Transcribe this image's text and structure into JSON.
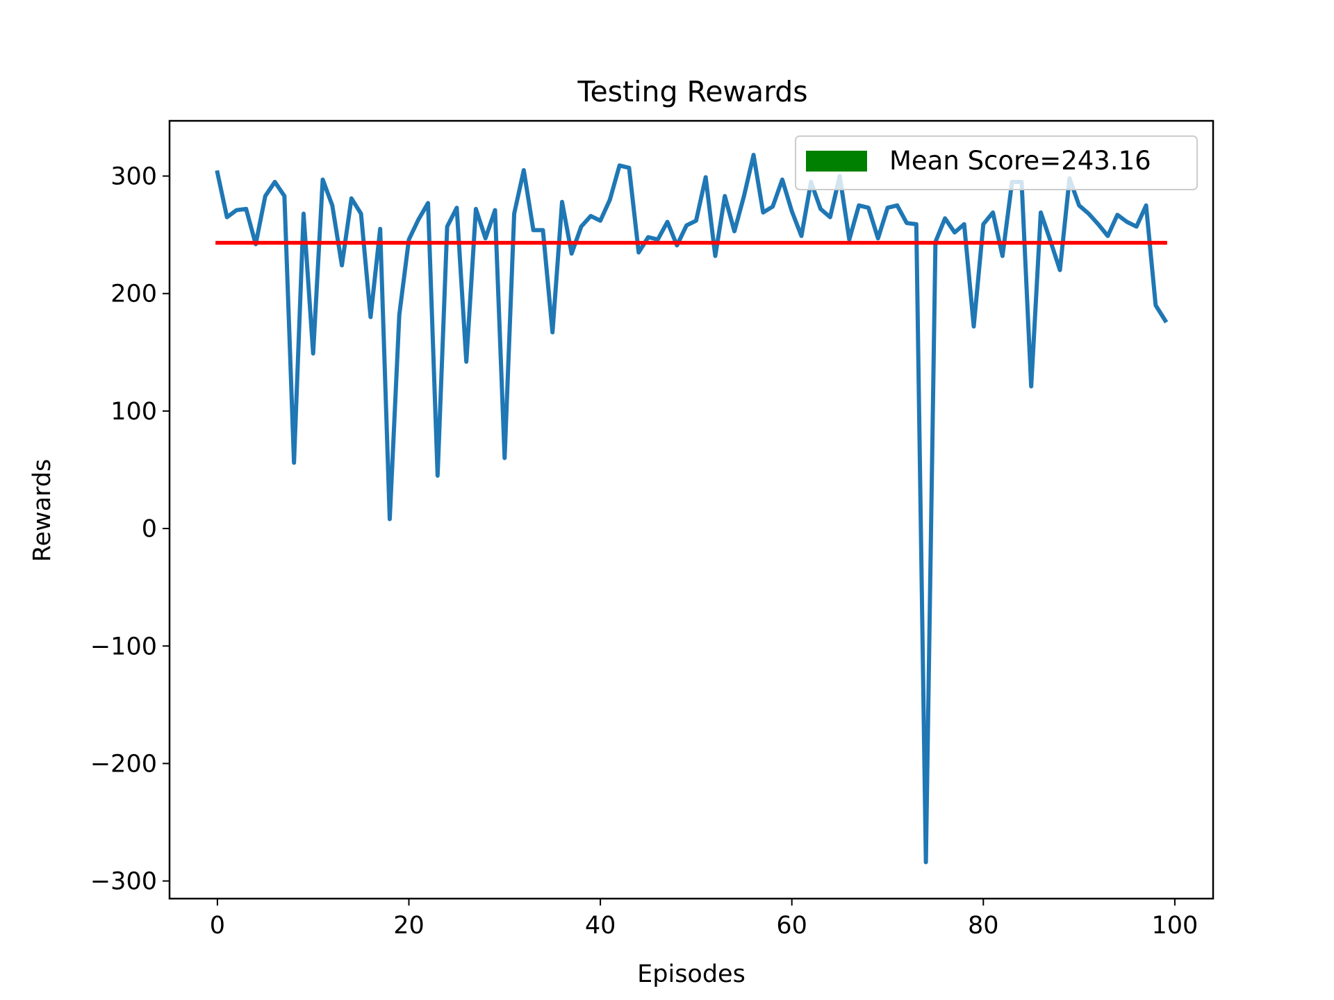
{
  "chart_data": {
    "type": "line",
    "title": "Testing Rewards",
    "xlabel": "Episodes",
    "ylabel": "Rewards",
    "xlim": [
      -5,
      104
    ],
    "ylim": [
      -315,
      347
    ],
    "xticks": [
      0,
      20,
      40,
      60,
      80,
      100
    ],
    "xtick_labels": [
      "0",
      "20",
      "40",
      "60",
      "80",
      "100"
    ],
    "yticks": [
      -300,
      -200,
      -100,
      0,
      100,
      200,
      300
    ],
    "ytick_labels": [
      "−300",
      "−200",
      "−100",
      "0",
      "100",
      "200",
      "300"
    ],
    "grid": false,
    "legend": {
      "position": "top-right",
      "entries": [
        {
          "label": "Mean Score=243.16",
          "color": "#008000",
          "marker": "patch"
        }
      ]
    },
    "series": [
      {
        "color": "#1f77b4",
        "x": [
          0,
          1,
          2,
          3,
          4,
          5,
          6,
          7,
          8,
          9,
          10,
          11,
          12,
          13,
          14,
          15,
          16,
          17,
          18,
          19,
          20,
          21,
          22,
          23,
          24,
          25,
          26,
          27,
          28,
          29,
          30,
          31,
          32,
          33,
          34,
          35,
          36,
          37,
          38,
          39,
          40,
          41,
          42,
          43,
          44,
          45,
          46,
          47,
          48,
          49,
          50,
          51,
          52,
          53,
          54,
          55,
          56,
          57,
          58,
          59,
          60,
          61,
          62,
          63,
          64,
          65,
          66,
          67,
          68,
          69,
          70,
          71,
          72,
          73,
          74,
          75,
          76,
          77,
          78,
          79,
          80,
          81,
          82,
          83,
          84,
          85,
          86,
          87,
          88,
          89,
          90,
          91,
          92,
          93,
          94,
          95,
          96,
          97,
          98,
          99
        ],
        "values": [
          303,
          265,
          271,
          272,
          242,
          283,
          295,
          283,
          56,
          268,
          149,
          297,
          275,
          224,
          281,
          268,
          180,
          255,
          8,
          182,
          246,
          263,
          277,
          45,
          257,
          273,
          142,
          272,
          247,
          271,
          60,
          268,
          305,
          254,
          254,
          167,
          278,
          234,
          257,
          266,
          262,
          280,
          309,
          307,
          235,
          248,
          246,
          261,
          241,
          258,
          262,
          299,
          232,
          283,
          253,
          283,
          318,
          269,
          274,
          297,
          270,
          249,
          295,
          272,
          265,
          300,
          246,
          275,
          273,
          247,
          273,
          275,
          260,
          259,
          -284,
          244,
          264,
          252,
          259,
          172,
          259,
          269,
          232,
          295,
          295,
          121,
          269,
          245,
          220,
          298,
          275,
          268,
          259,
          249,
          267,
          261,
          257,
          275,
          190,
          177
        ]
      },
      {
        "color": "#ff0000",
        "x": [
          0,
          99
        ],
        "values": [
          243.16,
          243.16
        ]
      }
    ]
  }
}
